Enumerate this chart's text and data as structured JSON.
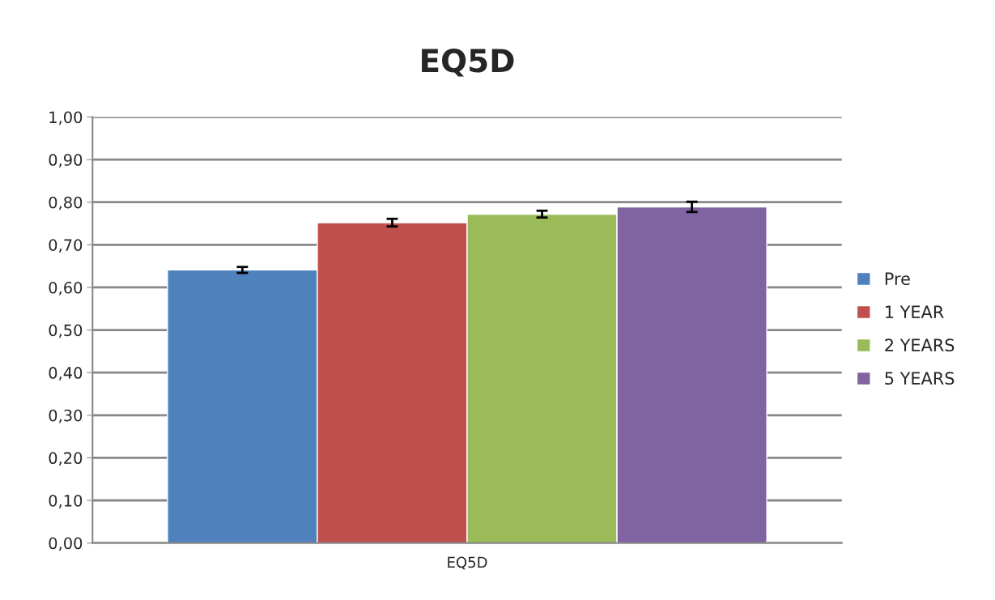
{
  "chart_data": {
    "type": "bar",
    "title": "EQ5D",
    "categories": [
      "EQ5D"
    ],
    "series": [
      {
        "name": "Pre",
        "color": "#4f81bd",
        "values": [
          0.641
        ],
        "errors": [
          0.007
        ]
      },
      {
        "name": "1 YEAR",
        "color": "#c0504d",
        "values": [
          0.752
        ],
        "errors": [
          0.009
        ]
      },
      {
        "name": "2 YEARS",
        "color": "#9bbb59",
        "values": [
          0.772
        ],
        "errors": [
          0.008
        ]
      },
      {
        "name": "5 YEARS",
        "color": "#8064a2",
        "values": [
          0.789
        ],
        "errors": [
          0.012
        ]
      }
    ],
    "ylim": [
      0,
      1
    ],
    "yticks": [
      {
        "value": 0,
        "label": "0,00"
      },
      {
        "value": 0.1,
        "label": "0,10"
      },
      {
        "value": 0.2,
        "label": "0,20"
      },
      {
        "value": 0.3,
        "label": "0,30"
      },
      {
        "value": 0.4,
        "label": "0,40"
      },
      {
        "value": 0.5,
        "label": "0,50"
      },
      {
        "value": 0.6,
        "label": "0,60"
      },
      {
        "value": 0.7,
        "label": "0,70"
      },
      {
        "value": 0.8,
        "label": "0,80"
      },
      {
        "value": 0.9,
        "label": "0,90"
      },
      {
        "value": 1,
        "label": "1,00"
      }
    ],
    "grid": "y",
    "legend": "right"
  }
}
